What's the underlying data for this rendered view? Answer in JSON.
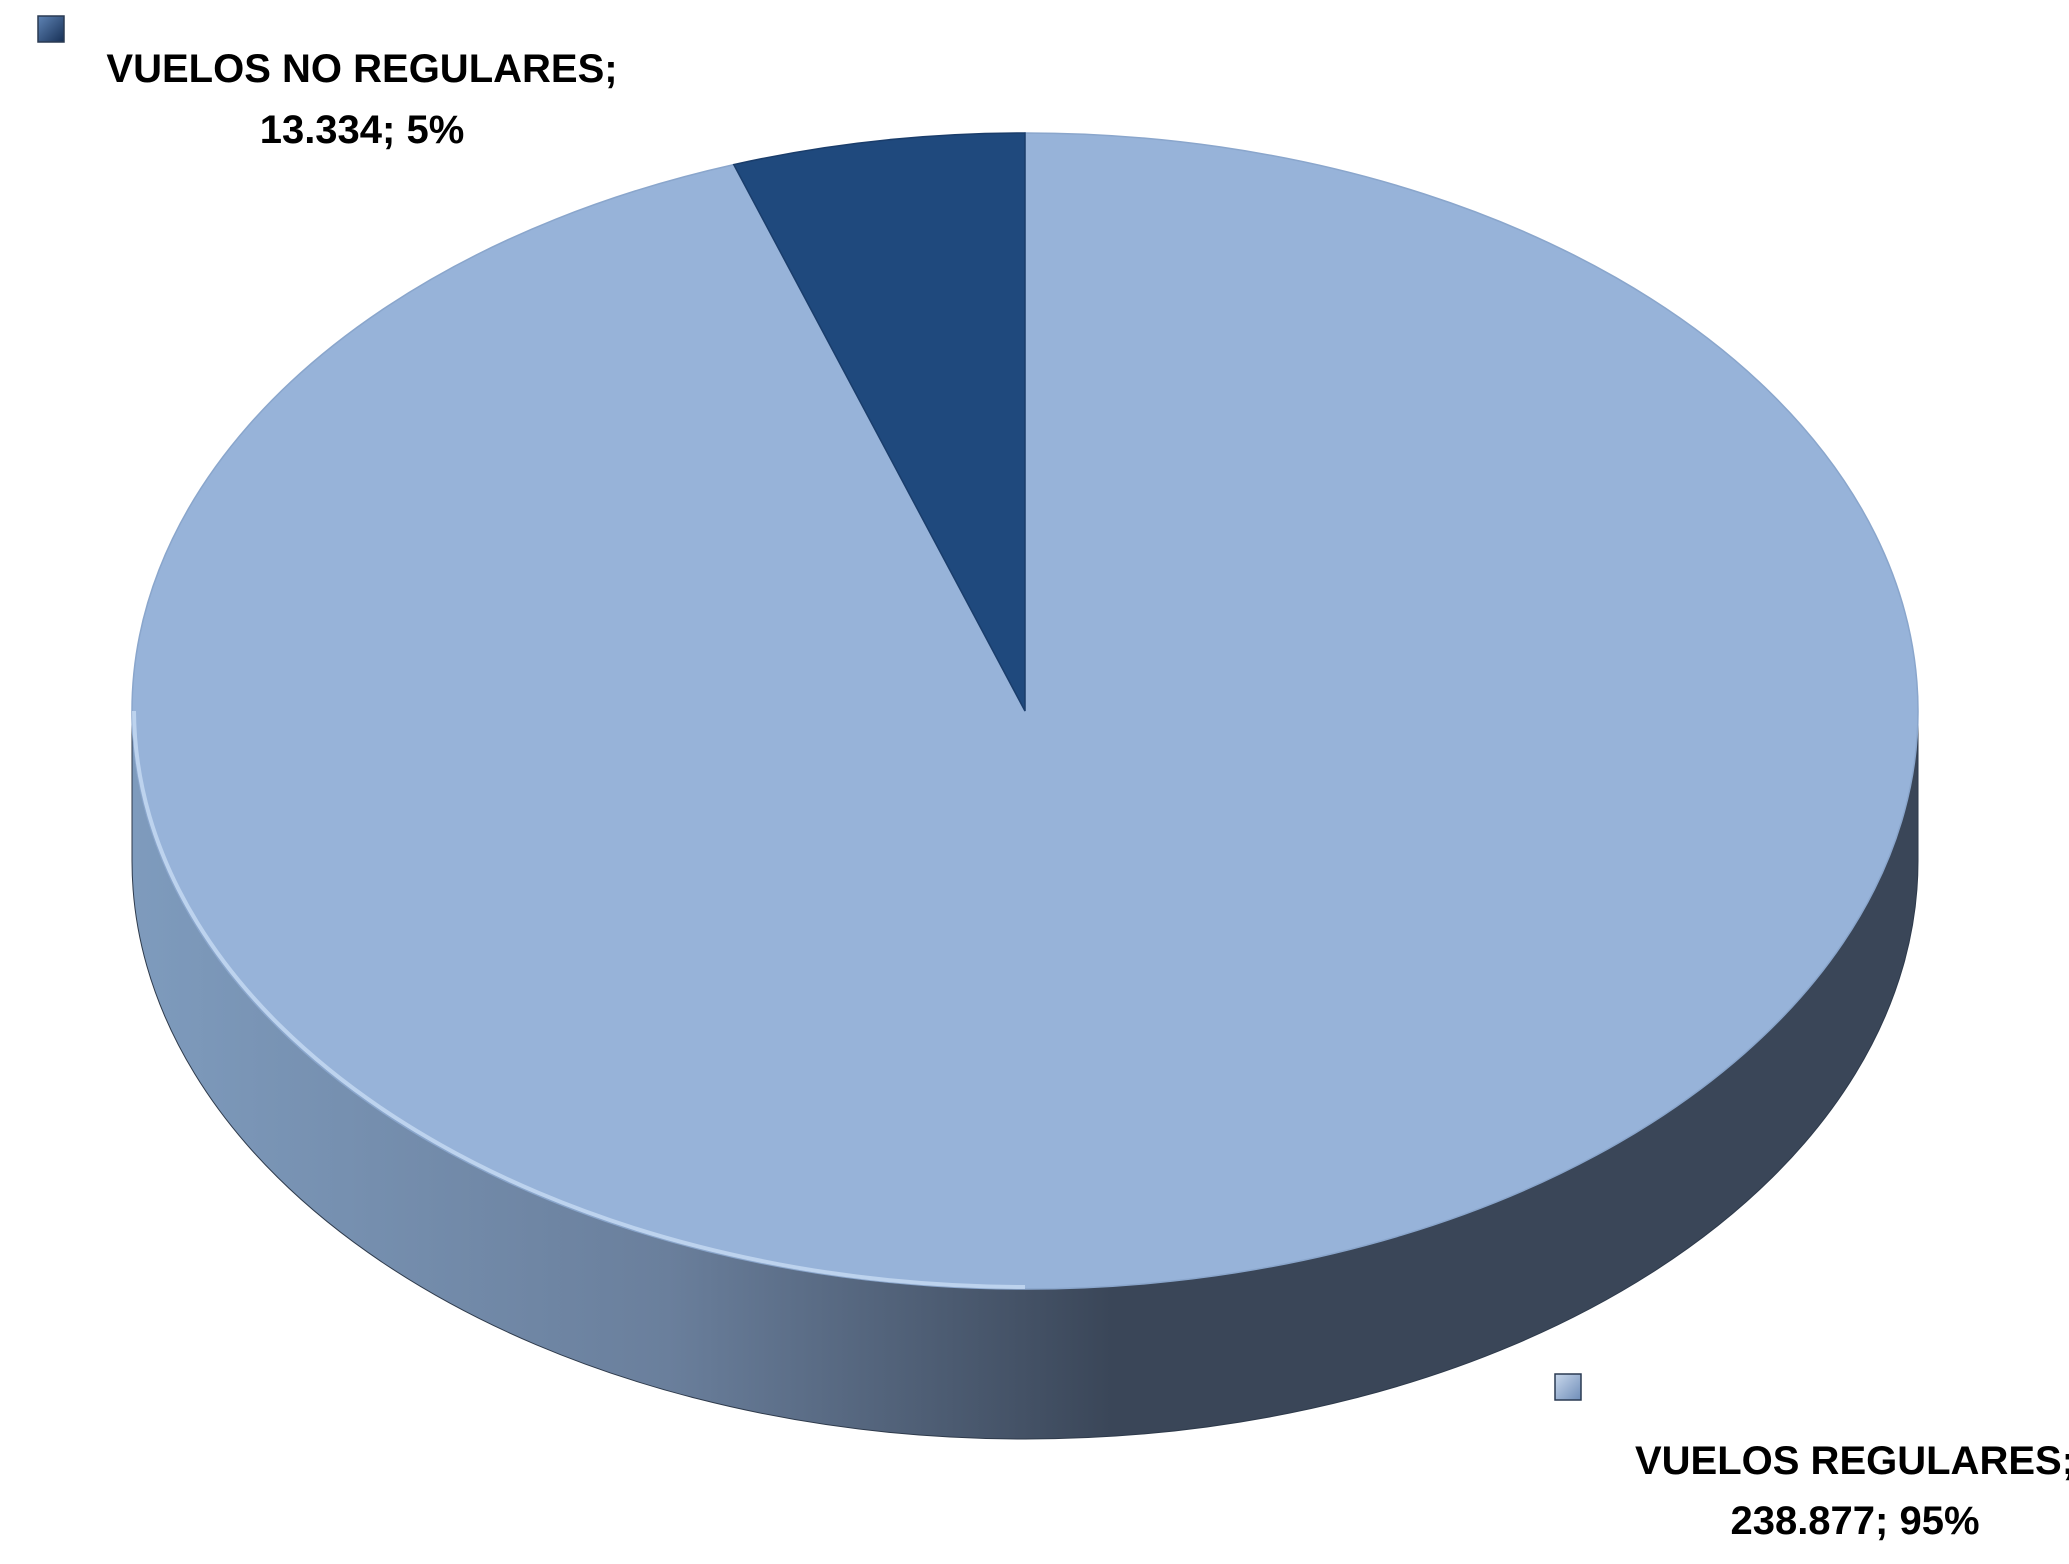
{
  "chart_data": {
    "type": "pie",
    "style": "3d",
    "title": "",
    "categories": [
      "VUELOS REGULARES",
      "VUELOS NO REGULARES"
    ],
    "values": [
      238877,
      13334
    ],
    "percent_labels": [
      "95%",
      "5%"
    ],
    "value_labels": [
      "238.877",
      "13.334"
    ],
    "label_lines": [
      [
        "VUELOS REGULARES;",
        "238.877; 95%"
      ],
      [
        "VUELOS NO REGULARES;",
        "13.334; 5%"
      ]
    ],
    "colors": [
      "#97b3d9",
      "#1f497d"
    ],
    "side_colors": [
      "#3a4658",
      "#1a3358"
    ],
    "label_text_color": "#000000"
  }
}
